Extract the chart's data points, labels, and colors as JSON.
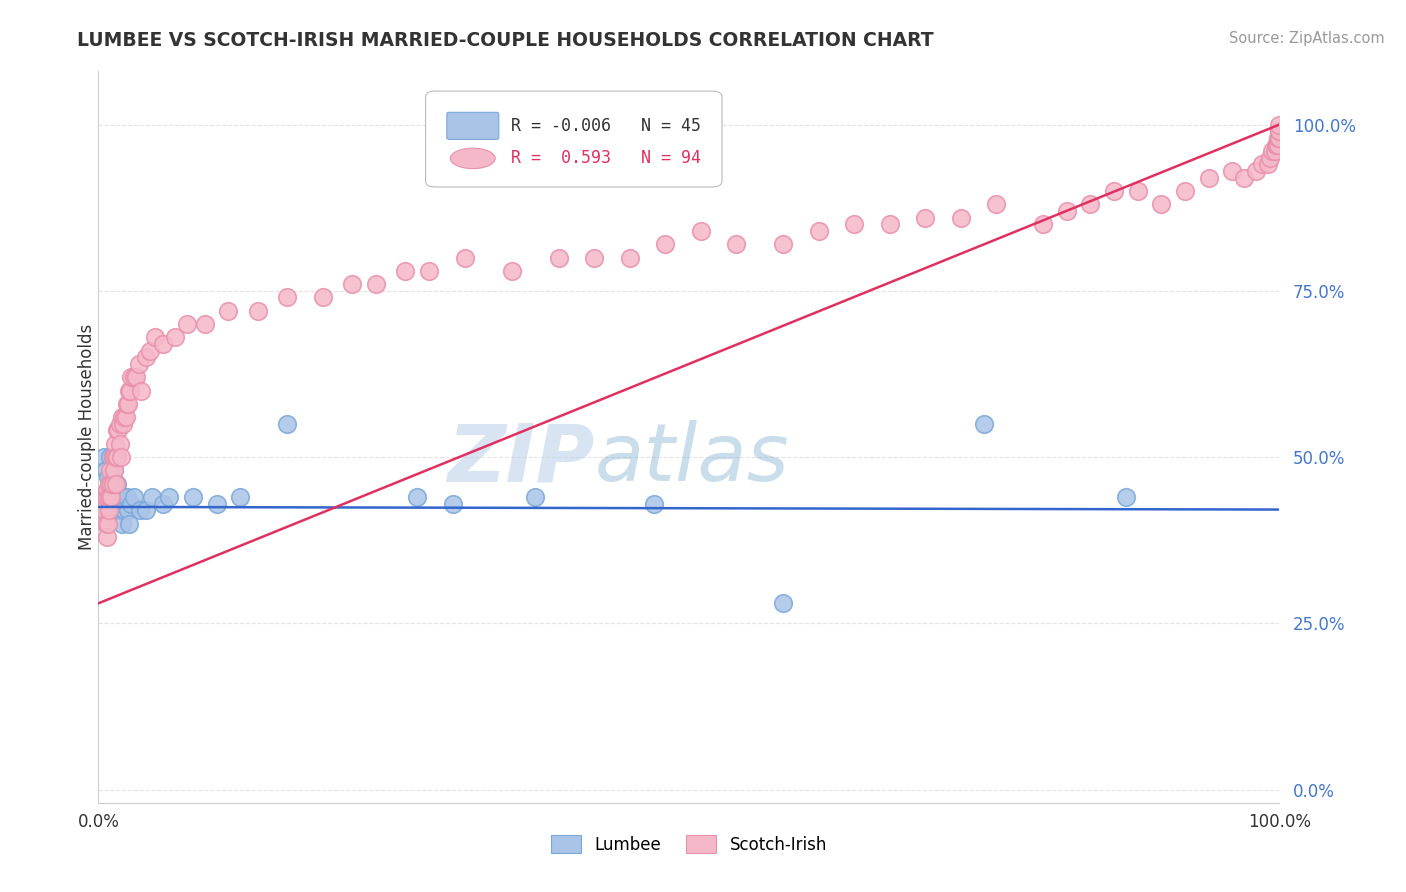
{
  "title": "LUMBEE VS SCOTCH-IRISH MARRIED-COUPLE HOUSEHOLDS CORRELATION CHART",
  "source": "Source: ZipAtlas.com",
  "ylabel": "Married-couple Households",
  "ytick_labels": [
    "0.0%",
    "25.0%",
    "50.0%",
    "75.0%",
    "100.0%"
  ],
  "ytick_values": [
    0.0,
    0.25,
    0.5,
    0.75,
    1.0
  ],
  "xtick_labels": [
    "0.0%",
    "100.0%"
  ],
  "xtick_values": [
    0.0,
    1.0
  ],
  "legend_lumbee": "Lumbee",
  "legend_scotch": "Scotch-Irish",
  "R_lumbee": -0.006,
  "N_lumbee": 45,
  "R_scotch": 0.593,
  "N_scotch": 94,
  "lumbee_color": "#aac4e8",
  "scotch_color": "#f5b8c8",
  "lumbee_edge_color": "#7aa8d8",
  "scotch_edge_color": "#e890aa",
  "lumbee_line_color": "#3366cc",
  "scotch_line_color": "#e03060",
  "watermark_zip": "ZIP",
  "watermark_atlas": "atlas",
  "watermark_color": "#cddff0",
  "background_color": "#ffffff",
  "grid_color": "#e0e0e0",
  "lumbee_line_intercept": 0.425,
  "lumbee_line_slope": -0.004,
  "scotch_line_intercept": 0.28,
  "scotch_line_slope": 0.72,
  "lumbee_x": [
    0.005,
    0.006,
    0.007,
    0.007,
    0.008,
    0.008,
    0.009,
    0.01,
    0.01,
    0.011,
    0.011,
    0.012,
    0.012,
    0.013,
    0.013,
    0.014,
    0.015,
    0.016,
    0.016,
    0.017,
    0.018,
    0.02,
    0.021,
    0.022,
    0.024,
    0.025,
    0.026,
    0.028,
    0.03,
    0.035,
    0.04,
    0.045,
    0.055,
    0.06,
    0.08,
    0.1,
    0.12,
    0.16,
    0.27,
    0.3,
    0.37,
    0.47,
    0.58,
    0.75,
    0.87
  ],
  "lumbee_y": [
    0.5,
    0.48,
    0.44,
    0.42,
    0.47,
    0.45,
    0.43,
    0.5,
    0.46,
    0.44,
    0.42,
    0.5,
    0.46,
    0.48,
    0.44,
    0.43,
    0.45,
    0.46,
    0.42,
    0.44,
    0.42,
    0.4,
    0.44,
    0.42,
    0.44,
    0.42,
    0.4,
    0.43,
    0.44,
    0.42,
    0.42,
    0.44,
    0.43,
    0.44,
    0.44,
    0.43,
    0.44,
    0.55,
    0.44,
    0.43,
    0.44,
    0.43,
    0.28,
    0.55,
    0.44
  ],
  "scotch_x": [
    0.005,
    0.006,
    0.006,
    0.007,
    0.007,
    0.008,
    0.008,
    0.009,
    0.009,
    0.01,
    0.01,
    0.011,
    0.011,
    0.012,
    0.012,
    0.013,
    0.013,
    0.014,
    0.015,
    0.015,
    0.016,
    0.016,
    0.017,
    0.018,
    0.018,
    0.019,
    0.02,
    0.021,
    0.022,
    0.023,
    0.024,
    0.025,
    0.026,
    0.027,
    0.028,
    0.03,
    0.032,
    0.034,
    0.036,
    0.04,
    0.044,
    0.048,
    0.055,
    0.065,
    0.075,
    0.09,
    0.11,
    0.135,
    0.16,
    0.19,
    0.215,
    0.235,
    0.26,
    0.28,
    0.31,
    0.35,
    0.39,
    0.42,
    0.45,
    0.48,
    0.51,
    0.54,
    0.58,
    0.61,
    0.64,
    0.67,
    0.7,
    0.73,
    0.76,
    0.8,
    0.82,
    0.84,
    0.86,
    0.88,
    0.9,
    0.92,
    0.94,
    0.96,
    0.97,
    0.98,
    0.985,
    0.99,
    0.992,
    0.994,
    0.996,
    0.997,
    0.998,
    0.999,
    0.999,
    1.0,
    1.0,
    1.0,
    1.0,
    1.0
  ],
  "scotch_y": [
    0.42,
    0.4,
    0.44,
    0.38,
    0.45,
    0.4,
    0.44,
    0.42,
    0.46,
    0.44,
    0.48,
    0.44,
    0.46,
    0.5,
    0.46,
    0.5,
    0.48,
    0.52,
    0.46,
    0.5,
    0.54,
    0.5,
    0.54,
    0.52,
    0.55,
    0.5,
    0.56,
    0.55,
    0.56,
    0.56,
    0.58,
    0.58,
    0.6,
    0.6,
    0.62,
    0.62,
    0.62,
    0.64,
    0.6,
    0.65,
    0.66,
    0.68,
    0.67,
    0.68,
    0.7,
    0.7,
    0.72,
    0.72,
    0.74,
    0.74,
    0.76,
    0.76,
    0.78,
    0.78,
    0.8,
    0.78,
    0.8,
    0.8,
    0.8,
    0.82,
    0.84,
    0.82,
    0.82,
    0.84,
    0.85,
    0.85,
    0.86,
    0.86,
    0.88,
    0.85,
    0.87,
    0.88,
    0.9,
    0.9,
    0.88,
    0.9,
    0.92,
    0.93,
    0.92,
    0.93,
    0.94,
    0.94,
    0.95,
    0.96,
    0.96,
    0.97,
    0.97,
    0.97,
    0.98,
    0.98,
    0.98,
    0.99,
    0.99,
    1.0
  ]
}
